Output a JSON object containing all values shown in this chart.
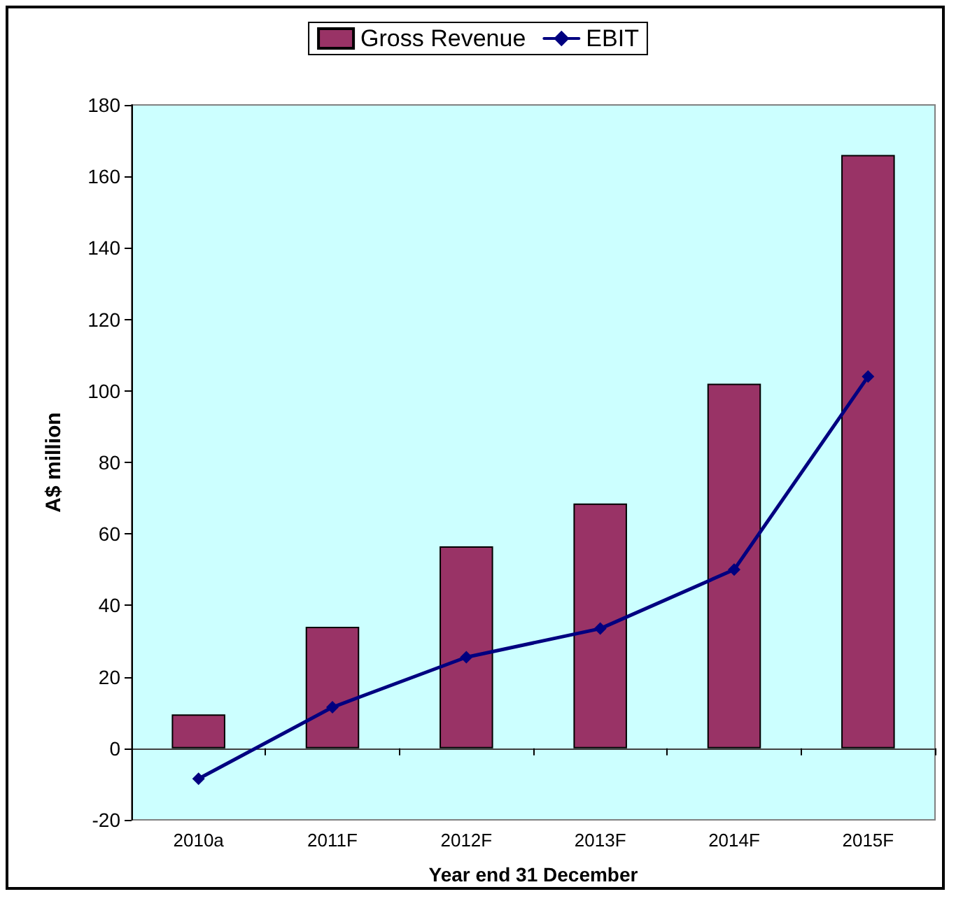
{
  "chart_data": {
    "type": "bar",
    "xlabel": "Year end 31 December",
    "ylabel": "A$ million",
    "categories": [
      "2010a",
      "2011F",
      "2012F",
      "2013F",
      "2014F",
      "2015F"
    ],
    "series": [
      {
        "name": "Gross Revenue",
        "color": "#993366",
        "values": [
          9.5,
          34,
          56.5,
          68.5,
          102,
          166
        ]
      },
      {
        "name": "EBIT",
        "type": "line",
        "color": "#000080",
        "values": [
          -8.5,
          11.5,
          25.5,
          33.5,
          50,
          104
        ],
        "marker": "diamond",
        "line_style": "solid"
      }
    ],
    "ylim": [
      -20,
      180
    ],
    "yticks": [
      -20,
      0,
      20,
      40,
      60,
      80,
      100,
      120,
      140,
      160,
      180
    ],
    "legend": "top"
  }
}
